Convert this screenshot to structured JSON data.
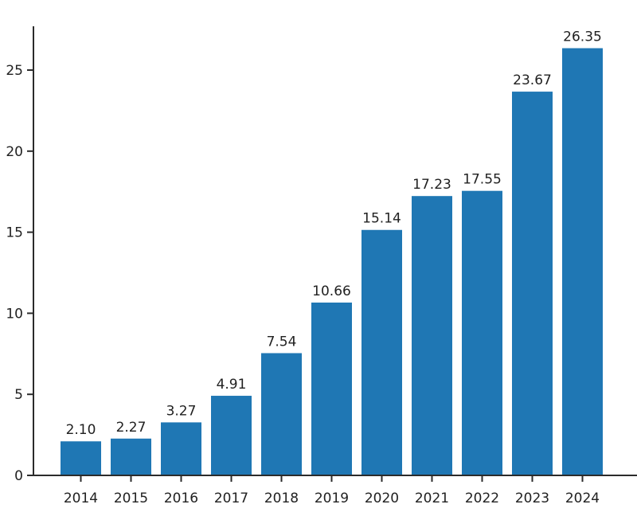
{
  "chart_data": {
    "type": "bar",
    "title": "",
    "xlabel": "",
    "ylabel": "",
    "categories": [
      "2014",
      "2015",
      "2016",
      "2017",
      "2018",
      "2019",
      "2020",
      "2021",
      "2022",
      "2023",
      "2024"
    ],
    "values": [
      2.1,
      2.27,
      3.27,
      4.91,
      7.54,
      10.66,
      15.14,
      17.23,
      17.55,
      23.67,
      26.35
    ],
    "value_labels": [
      "2.10",
      "2.27",
      "3.27",
      "4.91",
      "7.54",
      "10.66",
      "15.14",
      "17.23",
      "17.55",
      "23.67",
      "26.35"
    ],
    "yticks": [
      0,
      5,
      10,
      15,
      20,
      25
    ],
    "ytick_labels": [
      "0",
      "5",
      "10",
      "15",
      "20",
      "25"
    ],
    "ylim": [
      0,
      27.7
    ],
    "grid": false,
    "legend": "none",
    "colors": {
      "bar": "#1f77b4",
      "axis": "#2b2b2b",
      "text": "#212121"
    }
  }
}
